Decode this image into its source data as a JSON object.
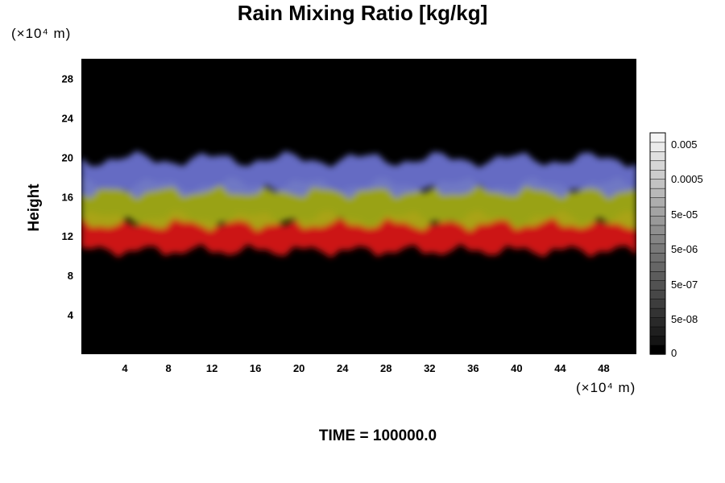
{
  "chart_data": {
    "type": "heatmap",
    "title": "Rain Mixing Ratio [kg/kg]",
    "xlabel": "",
    "ylabel": "Height",
    "x_unit": "(×10⁴ m)",
    "y_unit": "(×10⁴ m)",
    "xlim": [
      0,
      51
    ],
    "ylim": [
      0,
      30
    ],
    "x_ticks": [
      4,
      8,
      12,
      16,
      20,
      24,
      28,
      32,
      36,
      40,
      44,
      48
    ],
    "y_ticks": [
      4,
      8,
      12,
      16,
      20,
      24,
      28
    ],
    "colorbar": {
      "tick_labels": [
        "0.005",
        "0.0005",
        "5e-05",
        "5e-06",
        "5e-07",
        "5e-08",
        "0"
      ],
      "colors": [
        "#000000",
        "#141414",
        "#1f1f1f",
        "#292929",
        "#333333",
        "#3d3d3d",
        "#474747",
        "#525252",
        "#5c5c5c",
        "#666666",
        "#707070",
        "#7a7a7a",
        "#858585",
        "#8f8f8f",
        "#999999",
        "#a3a3a3",
        "#adadad",
        "#b8b8b8",
        "#c2c2c2",
        "#cccccc",
        "#d6d6d6",
        "#e0e0e0",
        "#ebebeb",
        "#f5f5f5"
      ]
    },
    "layers": [
      {
        "color": "#dd1a14",
        "bottom": 10.5,
        "top": 13.8
      },
      {
        "color": "#a6b018",
        "bottom": 13.2,
        "top": 17.2
      },
      {
        "color": "#6c74d4",
        "bottom": 16.5,
        "top": 19.8
      }
    ],
    "footer": "TIME = 100000.0"
  }
}
